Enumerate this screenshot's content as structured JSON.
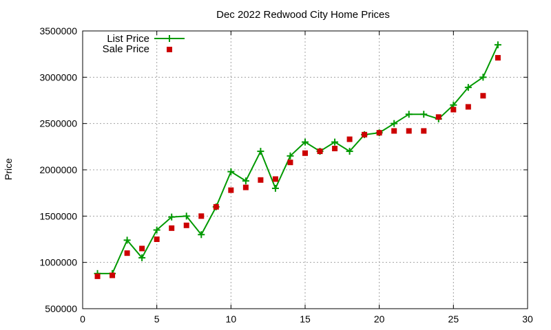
{
  "chart_data": {
    "type": "line",
    "title": "Dec 2022 Redwood City Home Prices",
    "xlabel": "",
    "ylabel": "Price",
    "xlim": [
      0,
      30
    ],
    "ylim": [
      500000,
      3500000
    ],
    "xticks": [
      0,
      5,
      10,
      15,
      20,
      25,
      30
    ],
    "yticks": [
      500000,
      1000000,
      1500000,
      2000000,
      2500000,
      3000000,
      3500000
    ],
    "grid": true,
    "legend_position": "top-left",
    "series": [
      {
        "name": "List Price",
        "style": "line-with-plus-markers",
        "color": "#009900",
        "x": [
          1,
          2,
          3,
          4,
          5,
          6,
          7,
          8,
          9,
          10,
          11,
          12,
          13,
          14,
          15,
          16,
          17,
          18,
          19,
          20,
          21,
          22,
          23,
          24,
          25,
          26,
          27,
          28
        ],
        "values": [
          880000,
          880000,
          1240000,
          1050000,
          1350000,
          1490000,
          1500000,
          1300000,
          1600000,
          1980000,
          1880000,
          2200000,
          1800000,
          2150000,
          2300000,
          2200000,
          2300000,
          2200000,
          2380000,
          2400000,
          2500000,
          2600000,
          2600000,
          2550000,
          2700000,
          2890000,
          3000000,
          3350000
        ]
      },
      {
        "name": "Sale Price",
        "style": "square-markers",
        "color": "#cc0000",
        "x": [
          1,
          2,
          3,
          4,
          5,
          6,
          7,
          8,
          9,
          10,
          11,
          12,
          13,
          14,
          15,
          16,
          17,
          18,
          19,
          20,
          21,
          22,
          23,
          24,
          25,
          26,
          27,
          28
        ],
        "values": [
          850000,
          860000,
          1100000,
          1150000,
          1250000,
          1370000,
          1400000,
          1500000,
          1600000,
          1780000,
          1810000,
          1890000,
          1900000,
          2080000,
          2180000,
          2200000,
          2230000,
          2330000,
          2380000,
          2400000,
          2420000,
          2420000,
          2420000,
          2570000,
          2650000,
          2680000,
          2800000,
          3210000
        ]
      }
    ]
  }
}
